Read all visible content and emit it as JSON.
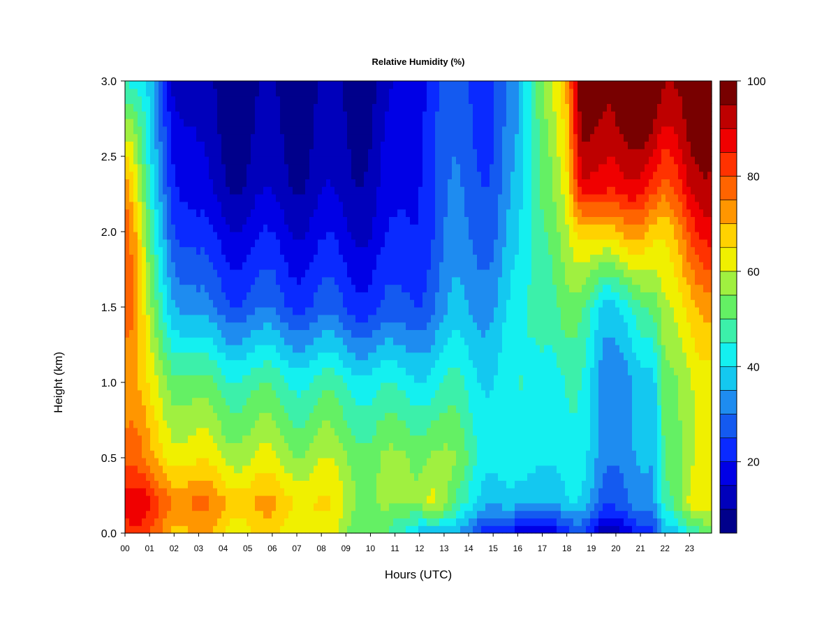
{
  "chart_data": {
    "type": "heatmap",
    "title": "Relative Humidity (%)",
    "xlabel": "Hours (UTC)",
    "ylabel": "Height (km)",
    "x_ticks": [
      "00",
      "01",
      "02",
      "03",
      "04",
      "05",
      "06",
      "07",
      "08",
      "09",
      "10",
      "11",
      "12",
      "13",
      "14",
      "15",
      "16",
      "17",
      "18",
      "19",
      "20",
      "21",
      "22",
      "23"
    ],
    "y_ticks": [
      "0.0",
      "0.5",
      "1.0",
      "1.5",
      "2.0",
      "2.5",
      "3.0"
    ],
    "xlim": [
      0,
      23.9
    ],
    "ylim": [
      0,
      3.0
    ],
    "colorbar": {
      "range": [
        5,
        100
      ],
      "ticks": [
        "20",
        "40",
        "60",
        "80",
        "100"
      ],
      "levels": [
        5,
        10,
        15,
        20,
        25,
        30,
        35,
        40,
        45,
        50,
        55,
        60,
        65,
        70,
        75,
        80,
        85,
        90,
        95,
        100
      ],
      "colors": [
        "#00008B",
        "#0000BB",
        "#0000E6",
        "#0A2AFF",
        "#145AF0",
        "#1E8CF0",
        "#14C8F0",
        "#14F0F0",
        "#3CF0AA",
        "#64F064",
        "#A0F040",
        "#F0F000",
        "#FFD200",
        "#FF9600",
        "#FF6400",
        "#FF3200",
        "#F00000",
        "#BE0000",
        "#780000"
      ]
    },
    "profile_heights_km": [
      0,
      0.2,
      0.5,
      1.0,
      1.5,
      2.0,
      2.3,
      2.7,
      3.0
    ],
    "profiles": [
      {
        "hour": 0,
        "rh": [
          80,
          88,
          78,
          72,
          78,
          80,
          75,
          58,
          45
        ]
      },
      {
        "hour": 0.3,
        "rh": [
          82,
          88,
          77,
          70,
          75,
          72,
          65,
          55,
          42
        ]
      },
      {
        "hour": 1,
        "rh": [
          78,
          84,
          70,
          62,
          55,
          48,
          42,
          38,
          36
        ]
      },
      {
        "hour": 2,
        "rh": [
          72,
          78,
          65,
          55,
          38,
          28,
          24,
          20,
          16
        ]
      },
      {
        "hour": 3,
        "rh": [
          68,
          74,
          62,
          50,
          30,
          20,
          14,
          12,
          10
        ]
      },
      {
        "hour": 4,
        "rh": [
          66,
          72,
          60,
          48,
          28,
          18,
          12,
          9,
          7
        ]
      },
      {
        "hour": 5,
        "rh": [
          64,
          70,
          60,
          48,
          28,
          18,
          12,
          9,
          8
        ]
      },
      {
        "hour": 7,
        "rh": [
          64,
          68,
          58,
          46,
          26,
          17,
          12,
          10,
          8
        ]
      },
      {
        "hour": 8,
        "rh": [
          60,
          64,
          58,
          46,
          26,
          17,
          12,
          10,
          9
        ]
      },
      {
        "hour": 10,
        "rh": [
          52,
          56,
          54,
          44,
          24,
          16,
          13,
          11,
          9
        ]
      },
      {
        "hour": 11,
        "rh": [
          44,
          52,
          54,
          42,
          24,
          18,
          16,
          14,
          12
        ]
      },
      {
        "hour": 12.5,
        "rh": [
          38,
          64,
          58,
          44,
          30,
          26,
          26,
          26,
          24
        ]
      },
      {
        "hour": 13.5,
        "rh": [
          32,
          46,
          52,
          44,
          34,
          30,
          28,
          26,
          24
        ]
      },
      {
        "hour": 15,
        "rh": [
          24,
          38,
          44,
          42,
          36,
          30,
          28,
          26,
          26
        ]
      },
      {
        "hour": 16,
        "rh": [
          14,
          34,
          40,
          42,
          40,
          36,
          34,
          32,
          32
        ]
      },
      {
        "hour": 17,
        "rh": [
          18,
          38,
          44,
          46,
          50,
          52,
          54,
          56,
          58
        ]
      },
      {
        "hour": 18,
        "rh": [
          20,
          38,
          42,
          44,
          52,
          58,
          62,
          66,
          70
        ]
      },
      {
        "hour": 18.6,
        "rh": [
          24,
          36,
          40,
          42,
          48,
          64,
          86,
          95,
          97
        ]
      },
      {
        "hour": 19.5,
        "rh": [
          12,
          30,
          34,
          34,
          40,
          70,
          90,
          97,
          99
        ]
      },
      {
        "hour": 20.5,
        "rh": [
          16,
          28,
          32,
          32,
          42,
          72,
          88,
          97,
          99
        ]
      },
      {
        "hour": 21.5,
        "rh": [
          22,
          32,
          34,
          36,
          50,
          66,
          82,
          95,
          99
        ]
      },
      {
        "hour": 22,
        "rh": [
          38,
          50,
          54,
          56,
          62,
          68,
          80,
          92,
          98
        ]
      },
      {
        "hour": 23,
        "rh": [
          44,
          60,
          58,
          58,
          66,
          80,
          90,
          96,
          98
        ]
      },
      {
        "hour": 23.9,
        "rh": [
          48,
          62,
          58,
          60,
          70,
          86,
          92,
          96,
          98
        ]
      }
    ]
  }
}
